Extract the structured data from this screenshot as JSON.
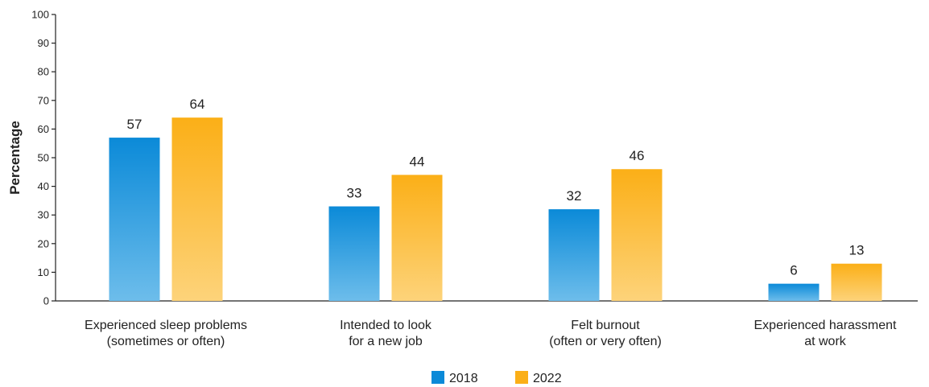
{
  "chart_data": {
    "type": "bar",
    "ylabel": "Percentage",
    "xlabel": "",
    "ylim": [
      0,
      100
    ],
    "yticks": [
      0,
      10,
      20,
      30,
      40,
      50,
      60,
      70,
      80,
      90,
      100
    ],
    "grid": false,
    "legend_position": "bottom-center",
    "categories": [
      [
        "Experienced sleep problems",
        "(sometimes or often)"
      ],
      [
        "Intended to look",
        "for a new job"
      ],
      [
        "Felt burnout",
        "(often or very often)"
      ],
      [
        "Experienced harassment",
        "at work"
      ]
    ],
    "series": [
      {
        "name": "2018",
        "values": [
          57,
          33,
          32,
          6
        ],
        "color_top": "#0B8AD8",
        "color_bottom": "#6DBDEB"
      },
      {
        "name": "2022",
        "values": [
          64,
          44,
          46,
          13
        ],
        "color_top": "#FBAF17",
        "color_bottom": "#FDD37A"
      }
    ]
  }
}
